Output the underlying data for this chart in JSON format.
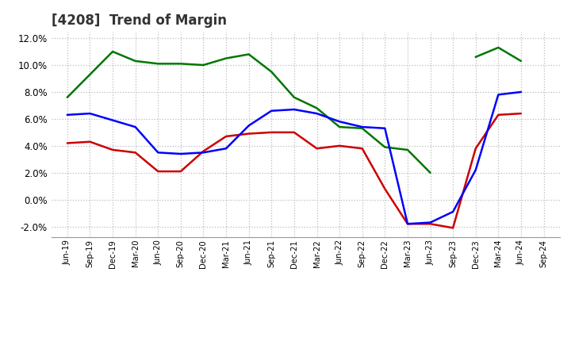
{
  "title": "[4208]  Trend of Margin",
  "x_labels": [
    "Jun-19",
    "Sep-19",
    "Dec-19",
    "Mar-20",
    "Jun-20",
    "Sep-20",
    "Dec-20",
    "Mar-21",
    "Jun-21",
    "Sep-21",
    "Dec-21",
    "Mar-22",
    "Jun-22",
    "Sep-22",
    "Dec-22",
    "Mar-23",
    "Jun-23",
    "Sep-23",
    "Dec-23",
    "Mar-24",
    "Jun-24",
    "Sep-24"
  ],
  "ordinary_income": [
    6.3,
    6.4,
    5.9,
    5.4,
    3.5,
    3.4,
    3.5,
    3.8,
    5.5,
    6.6,
    6.7,
    6.4,
    5.8,
    5.4,
    5.3,
    -1.8,
    -1.7,
    -0.9,
    2.2,
    7.8,
    8.0,
    null
  ],
  "net_income": [
    4.2,
    4.3,
    3.7,
    3.5,
    2.1,
    2.1,
    3.6,
    4.7,
    4.9,
    5.0,
    5.0,
    3.8,
    4.0,
    3.8,
    0.8,
    -1.8,
    -1.8,
    -2.1,
    3.8,
    6.3,
    6.4,
    null
  ],
  "operating_cashflow": [
    7.6,
    9.3,
    11.0,
    10.3,
    10.1,
    10.1,
    10.0,
    10.5,
    10.8,
    9.5,
    7.6,
    6.8,
    5.4,
    5.3,
    3.9,
    3.7,
    2.0,
    null,
    10.6,
    11.3,
    10.3,
    null
  ],
  "colors": {
    "ordinary_income": "#0000ff",
    "net_income": "#cc0000",
    "operating_cashflow": "#007700"
  },
  "ylim": [
    -2.8,
    12.5
  ],
  "yticks": [
    -2.0,
    0.0,
    2.0,
    4.0,
    6.0,
    8.0,
    10.0,
    12.0
  ],
  "background_color": "#ffffff",
  "grid_color": "#bbbbbb",
  "title_fontsize": 12,
  "title_color": "#333333"
}
